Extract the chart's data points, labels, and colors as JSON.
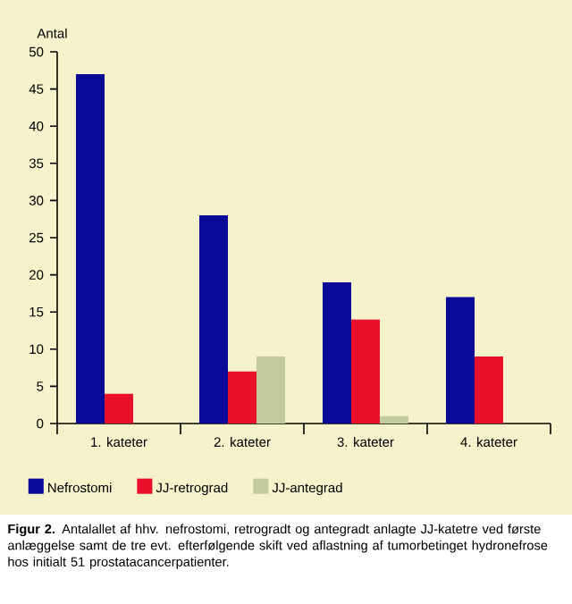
{
  "chart_data": {
    "type": "bar",
    "ylabel": "Antal",
    "categories": [
      "1. kateter",
      "2. kateter",
      "3. kateter",
      "4. kateter"
    ],
    "series": [
      {
        "name": "Nefrostomi",
        "color": "#0a0a96",
        "values": [
          47,
          28,
          19,
          17
        ]
      },
      {
        "name": "JJ-retrograd",
        "color": "#e8102a",
        "values": [
          4,
          7,
          14,
          9
        ]
      },
      {
        "name": "JJ-antegrad",
        "color": "#c2cb9e",
        "values": [
          0,
          9,
          1,
          0
        ]
      }
    ],
    "ylim": [
      0,
      50
    ],
    "yticks": [
      0,
      5,
      10,
      15,
      20,
      25,
      30,
      35,
      40,
      45,
      50
    ],
    "legend": "bottom",
    "annotations": [
      "**Figur 2.** Antalallet af hhv. nefrostomi, retrogradt og antegradt anlagte JJ-katetre ved første anlæggelse samt de tre evt. efterfølgende skift ved aflastning af tumorbetinget hydronefrose hos initialt 51 prostatacancerpatienter."
    ]
  }
}
